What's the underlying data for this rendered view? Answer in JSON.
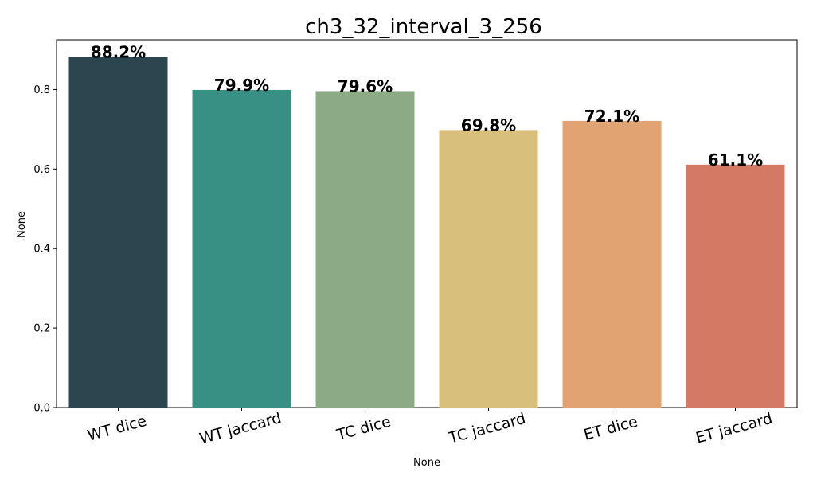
{
  "chart_data": {
    "type": "bar",
    "title": "ch3_32_interval_3_256",
    "xlabel": "None",
    "ylabel": "None",
    "categories": [
      "WT dice",
      "WT jaccard",
      "TC dice",
      "TC jaccard",
      "ET dice",
      "ET jaccard"
    ],
    "values": [
      0.882,
      0.799,
      0.796,
      0.698,
      0.721,
      0.611
    ],
    "data_labels": [
      "88.2%",
      "79.9%",
      "79.6%",
      "69.8%",
      "72.1%",
      "61.1%"
    ],
    "colors": [
      "#2c4650",
      "#388f83",
      "#8cab84",
      "#d9bf7c",
      "#e2a372",
      "#d47964"
    ],
    "ylim": [
      0,
      0.925
    ],
    "yticks": [
      0.0,
      0.2,
      0.4,
      0.6,
      0.8
    ],
    "ytick_labels": [
      "0.0",
      "0.2",
      "0.4",
      "0.6",
      "0.8"
    ],
    "grid": false,
    "xtick_rotation": 15
  }
}
